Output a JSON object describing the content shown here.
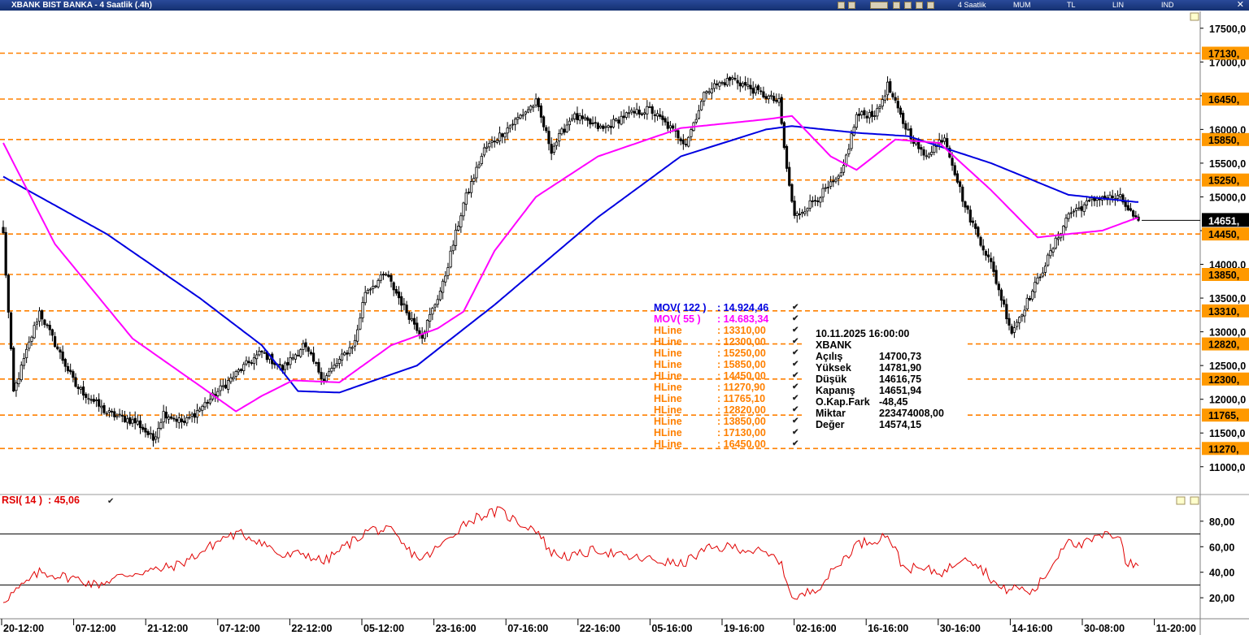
{
  "window": {
    "title": "XBANK BIST BANKA - 4 Saatlik (.4h)",
    "toolbar": {
      "period": "4 Saatlik",
      "style": "MUM",
      "currency": "TL",
      "scale": "LIN",
      "mode": "IND"
    },
    "close_icon": "close-icon"
  },
  "chart_data": [
    {
      "type": "candlestick",
      "symbol": "XBANK",
      "timeframe": "4 Saatlik",
      "ylim": [
        10600,
        17750
      ],
      "y_ticks": [
        11000,
        11500,
        12000,
        12500,
        13000,
        13500,
        14000,
        14500,
        15000,
        15500,
        16000,
        16500,
        17000,
        17500
      ],
      "y_tick_labels": [
        "11000,0",
        "11500,0",
        "12000,0",
        "12500,0",
        "13000,0",
        "13500,0",
        "14000,0",
        "",
        "15000,0",
        "15500,0",
        "16000,0",
        "",
        "17000,0",
        "17500,0"
      ],
      "x_labels": [
        "20-12:00",
        "07-12:00",
        "21-12:00",
        "07-12:00",
        "22-12:00",
        "05-12:00",
        "23-16:00",
        "07-16:00",
        "22-16:00",
        "05-16:00",
        "19-16:00",
        "02-16:00",
        "16-16:00",
        "30-16:00",
        "14-16:00",
        "30-08:00",
        "11-20:00"
      ],
      "close_anchors": [
        [
          0,
          14450
        ],
        [
          4,
          12100
        ],
        [
          14,
          13300
        ],
        [
          28,
          12200
        ],
        [
          40,
          11800
        ],
        [
          52,
          11650
        ],
        [
          58,
          11400
        ],
        [
          62,
          11800
        ],
        [
          70,
          11650
        ],
        [
          80,
          12000
        ],
        [
          92,
          12450
        ],
        [
          100,
          12700
        ],
        [
          108,
          12450
        ],
        [
          116,
          12800
        ],
        [
          124,
          12300
        ],
        [
          136,
          12850
        ],
        [
          140,
          13600
        ],
        [
          148,
          13850
        ],
        [
          156,
          13300
        ],
        [
          162,
          12950
        ],
        [
          170,
          13700
        ],
        [
          178,
          14900
        ],
        [
          186,
          15700
        ],
        [
          200,
          16200
        ],
        [
          206,
          16400
        ],
        [
          212,
          15700
        ],
        [
          220,
          16200
        ],
        [
          232,
          16000
        ],
        [
          240,
          16200
        ],
        [
          250,
          16300
        ],
        [
          264,
          15800
        ],
        [
          272,
          16600
        ],
        [
          282,
          16750
        ],
        [
          292,
          16550
        ],
        [
          300,
          16400
        ],
        [
          303,
          15400
        ],
        [
          306,
          14700
        ],
        [
          312,
          14900
        ],
        [
          324,
          15300
        ],
        [
          330,
          16200
        ],
        [
          338,
          16250
        ],
        [
          342,
          16650
        ],
        [
          348,
          16100
        ],
        [
          356,
          15600
        ],
        [
          364,
          15900
        ],
        [
          372,
          14850
        ],
        [
          382,
          14000
        ],
        [
          390,
          13000
        ],
        [
          398,
          13600
        ],
        [
          406,
          14250
        ],
        [
          412,
          14750
        ],
        [
          424,
          15000
        ],
        [
          432,
          14980
        ],
        [
          438,
          14651
        ]
      ],
      "series": [
        {
          "name": "MOV( 122 )",
          "last": "14.924,46",
          "color": "#0000e0",
          "anchors": [
            [
              0,
              15300
            ],
            [
              40,
              14450
            ],
            [
              76,
              13500
            ],
            [
              100,
              12800
            ],
            [
              114,
              12120
            ],
            [
              130,
              12100
            ],
            [
              160,
              12500
            ],
            [
              190,
              13400
            ],
            [
              230,
              14700
            ],
            [
              262,
              15600
            ],
            [
              295,
              16000
            ],
            [
              305,
              16050
            ],
            [
              330,
              15950
            ],
            [
              350,
              15900
            ],
            [
              382,
              15500
            ],
            [
              412,
              15030
            ],
            [
              438,
              14925
            ]
          ]
        },
        {
          "name": "MOV( 55 )",
          "last": "14.683,34",
          "color": "#ff00ff",
          "anchors": [
            [
              0,
              15800
            ],
            [
              20,
              14300
            ],
            [
              50,
              12900
            ],
            [
              76,
              12200
            ],
            [
              90,
              11820
            ],
            [
              100,
              12050
            ],
            [
              112,
              12280
            ],
            [
              130,
              12250
            ],
            [
              150,
              12800
            ],
            [
              168,
              13050
            ],
            [
              178,
              13300
            ],
            [
              190,
              14200
            ],
            [
              206,
              15000
            ],
            [
              230,
              15600
            ],
            [
              262,
              16020
            ],
            [
              295,
              16150
            ],
            [
              305,
              16200
            ],
            [
              320,
              15600
            ],
            [
              330,
              15400
            ],
            [
              345,
              15850
            ],
            [
              362,
              15800
            ],
            [
              382,
              15100
            ],
            [
              400,
              14400
            ],
            [
              412,
              14450
            ],
            [
              425,
              14500
            ],
            [
              438,
              14683
            ]
          ]
        }
      ],
      "hlines": [
        {
          "label": "HLine",
          "value": "13310,00",
          "price": 13310
        },
        {
          "label": "HLine",
          "value": "12300,00",
          "price": 12300
        },
        {
          "label": "HLine",
          "value": "15250,00",
          "price": 15250
        },
        {
          "label": "HLine",
          "value": "15850,00",
          "price": 15850
        },
        {
          "label": "HLine",
          "value": "14450,00",
          "price": 14450
        },
        {
          "label": "HLine",
          "value": "11270,90",
          "price": 11270.9
        },
        {
          "label": "HLine",
          "value": "11765,10",
          "price": 11765.1
        },
        {
          "label": "HLine",
          "value": "12820,00",
          "price": 12820
        },
        {
          "label": "HLine",
          "value": "13850,00",
          "price": 13850
        },
        {
          "label": "HLine",
          "value": "17130,00",
          "price": 17130
        },
        {
          "label": "HLine",
          "value": "16450,00",
          "price": 16450
        }
      ],
      "hline_tags": [
        "17130,",
        "16450,",
        "15850,",
        "15250,",
        "14450,",
        "13850,",
        "13310,",
        "12820,",
        "12300,",
        "11765,",
        "11270,"
      ],
      "last_price_tag": "14651,",
      "last_price": 14651.94,
      "hline_color": "#ff8000"
    },
    {
      "type": "line",
      "name": "RSI( 14 )",
      "last": "45,06",
      "ylim": [
        8,
        92
      ],
      "y_ticks": [
        20,
        40,
        60,
        80
      ],
      "y_tick_labels": [
        "20,00",
        "40,00",
        "60,00",
        "80,00"
      ],
      "reference_lines": [
        30,
        70
      ],
      "color": "#e00000",
      "anchors": [
        [
          0,
          18
        ],
        [
          6,
          27
        ],
        [
          14,
          40
        ],
        [
          28,
          35
        ],
        [
          36,
          30
        ],
        [
          44,
          36
        ],
        [
          52,
          40
        ],
        [
          60,
          42
        ],
        [
          68,
          46
        ],
        [
          76,
          55
        ],
        [
          86,
          68
        ],
        [
          92,
          70
        ],
        [
          100,
          64
        ],
        [
          108,
          52
        ],
        [
          116,
          55
        ],
        [
          124,
          48
        ],
        [
          132,
          60
        ],
        [
          142,
          74
        ],
        [
          150,
          72
        ],
        [
          156,
          58
        ],
        [
          162,
          50
        ],
        [
          170,
          62
        ],
        [
          178,
          78
        ],
        [
          184,
          84
        ],
        [
          192,
          88
        ],
        [
          200,
          78
        ],
        [
          206,
          74
        ],
        [
          212,
          55
        ],
        [
          220,
          52
        ],
        [
          230,
          58
        ],
        [
          240,
          52
        ],
        [
          250,
          50
        ],
        [
          262,
          46
        ],
        [
          272,
          58
        ],
        [
          282,
          60
        ],
        [
          292,
          56
        ],
        [
          300,
          50
        ],
        [
          304,
          28
        ],
        [
          306,
          18
        ],
        [
          316,
          30
        ],
        [
          324,
          48
        ],
        [
          330,
          62
        ],
        [
          338,
          66
        ],
        [
          342,
          70
        ],
        [
          348,
          44
        ],
        [
          356,
          42
        ],
        [
          364,
          40
        ],
        [
          372,
          54
        ],
        [
          380,
          40
        ],
        [
          386,
          26
        ],
        [
          392,
          28
        ],
        [
          398,
          24
        ],
        [
          404,
          40
        ],
        [
          412,
          68
        ],
        [
          416,
          60
        ],
        [
          424,
          68
        ],
        [
          432,
          70
        ],
        [
          434,
          48
        ],
        [
          438,
          45
        ]
      ]
    }
  ],
  "ohlc": {
    "datetime": "10.11.2025  16:00:00",
    "symbol": "XBANK",
    "rows": [
      {
        "key": "Açılış",
        "value": "14700,73"
      },
      {
        "key": "Yüksek",
        "value": "14781,90"
      },
      {
        "key": "Düşük",
        "value": "14616,75"
      },
      {
        "key": "Kapanış",
        "value": "14651,94"
      },
      {
        "key": "O.Kap.Fark",
        "value": "-48,45"
      },
      {
        "key": "Miktar",
        "value": "223474008,00"
      },
      {
        "key": "Değer",
        "value": "14574,15"
      }
    ]
  },
  "icons": {
    "check": "✔",
    "scroll": "⇳"
  }
}
